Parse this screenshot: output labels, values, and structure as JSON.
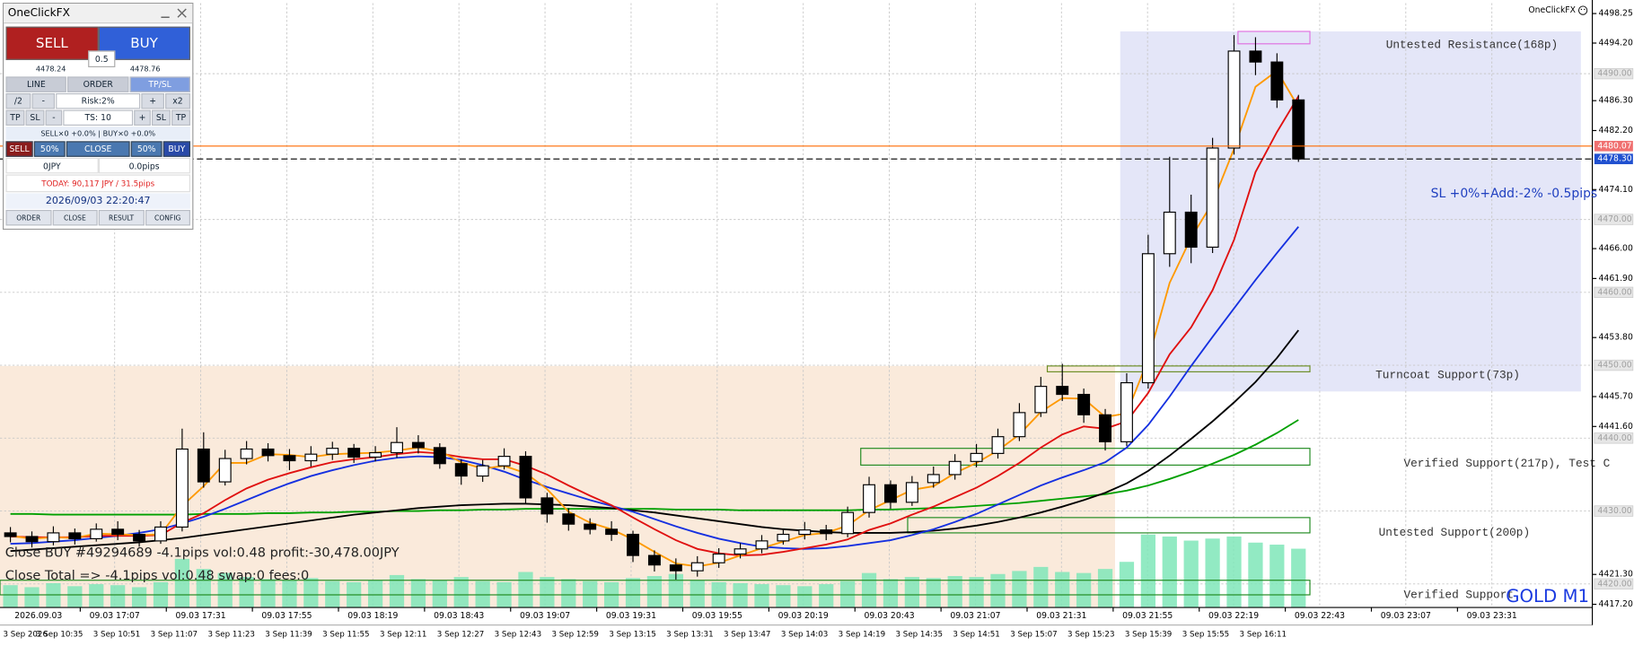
{
  "chart_data": {
    "type": "candlestick",
    "ylim": [
      4416.77,
      4499.68
    ],
    "yticks": [
      4498.25,
      {
        "value": 4494.2,
        "label": "4494.20"
      },
      {
        "value": 4486.3,
        "label": "4486.30"
      },
      {
        "value": 4482.2,
        "label": "4482.20"
      },
      {
        "value": 4474.1,
        "label": "4474.10"
      },
      {
        "value": 4466,
        "label": "4466.00"
      },
      {
        "value": 4461.9,
        "label": "4461.90"
      },
      {
        "value": 4453.8,
        "label": "4453.80"
      },
      {
        "value": 4445.7,
        "label": "4445.70"
      },
      {
        "value": 4441.6,
        "label": "4441.60"
      },
      {
        "value": 4421.3,
        "label": "4421.30"
      },
      {
        "value": 4417.2,
        "label": "4417.20"
      }
    ],
    "levels": [
      {
        "value": 4490,
        "label": "4490.00"
      },
      {
        "value": 4470,
        "label": "4470.00"
      },
      {
        "value": 4460,
        "label": "4460.00"
      },
      {
        "value": 4450,
        "label": "4450.00"
      },
      {
        "value": 4440,
        "label": "4440.00"
      },
      {
        "value": 4430,
        "label": "4430.00"
      },
      {
        "value": 4420,
        "label": "4420.00"
      }
    ],
    "grid": true,
    "price_markers": [
      {
        "value": 4480.07,
        "label": "4480.07",
        "color": "#f07070"
      },
      {
        "value": 4478.3,
        "label": "4478.30",
        "color": "#2050d0"
      }
    ],
    "xlabels": [
      "2026.09.03",
      "09.03 17:07",
      "09.03 17:31",
      "09.03 17:55",
      "09.03 18:19",
      "09.03 18:43",
      "09.03 19:07",
      "09.03 19:31",
      "09.03 19:55",
      "09.03 20:19",
      "09.03 20:43",
      "09.03 21:07",
      "09.03 21:31",
      "09.03 21:55",
      "09.03 22:19",
      "09.03 22:43",
      "09.03 23:07",
      "09.03 23:31"
    ],
    "xlabels_2": [
      "3 Sep 2026",
      "3 Sep 10:35",
      "3 Sep 10:51",
      "3 Sep 11:07",
      "3 Sep 11:23",
      "3 Sep 11:39",
      "3 Sep 11:55",
      "3 Sep 12:11",
      "3 Sep 12:27",
      "3 Sep 12:43",
      "3 Sep 12:59",
      "3 Sep 13:15",
      "3 Sep 13:31",
      "3 Sep 13:47",
      "3 Sep 14:03",
      "3 Sep 14:19",
      "3 Sep 14:35",
      "3 Sep 14:51",
      "3 Sep 15:07",
      "3 Sep 15:23",
      "3 Sep 15:39",
      "3 Sep 15:55",
      "3 Sep 16:11"
    ],
    "open": [
      4427.0,
      4426.5,
      4425.8,
      4427.0,
      4426.2,
      4427.5,
      4426.8,
      4425.9,
      4427.8,
      4438.5,
      4434.0,
      4437.2,
      4438.5,
      4437.6,
      4436.9,
      4437.8,
      4438.6,
      4437.4,
      4438.0,
      4439.4,
      4438.7,
      4436.5,
      4434.8,
      4436.2,
      4437.5,
      4431.8,
      4429.6,
      4428.2,
      4427.5,
      4426.8,
      4423.9,
      4422.6,
      4421.8,
      4422.9,
      4424.1,
      4424.8,
      4425.9,
      4426.8,
      4427.4,
      4426.9,
      4429.8,
      4433.6,
      4431.2,
      4433.9,
      4435.0,
      4436.8,
      4437.9,
      4440.2,
      4443.5,
      4447.1,
      4446.0,
      4443.2,
      4439.5,
      4447.6,
      4465.3,
      4471.0,
      4466.2,
      4479.8,
      4493.1,
      4491.6,
      4486.4
    ],
    "high": [
      4427.8,
      4427.2,
      4427.9,
      4427.6,
      4428.3,
      4428.6,
      4427.4,
      4428.6,
      4441.3,
      4440.8,
      4438.4,
      4439.6,
      4439.3,
      4438.5,
      4438.9,
      4439.5,
      4439.2,
      4438.9,
      4441.5,
      4440.4,
      4439.3,
      4437.1,
      4437.0,
      4438.6,
      4438.2,
      4432.5,
      4430.4,
      4429.0,
      4428.6,
      4427.3,
      4424.6,
      4423.5,
      4423.8,
      4424.9,
      4425.6,
      4426.7,
      4427.6,
      4428.5,
      4428.1,
      4430.6,
      4434.7,
      4434.2,
      4434.8,
      4436.1,
      4437.8,
      4439.2,
      4441.3,
      4444.8,
      4448.4,
      4450.2,
      4446.8,
      4444.0,
      4448.9,
      4467.9,
      4478.6,
      4473.4,
      4481.2,
      4495.3,
      4495.0,
      4492.8,
      4487.1
    ],
    "low": [
      4425.7,
      4425.0,
      4425.3,
      4425.4,
      4425.8,
      4426.0,
      4425.1,
      4425.5,
      4427.2,
      4433.2,
      4433.5,
      4436.4,
      4436.8,
      4435.6,
      4436.1,
      4437.0,
      4436.6,
      4436.8,
      4437.3,
      4437.9,
      4435.8,
      4433.6,
      4434.0,
      4435.7,
      4431.0,
      4428.4,
      4427.3,
      4426.8,
      4425.9,
      4423.0,
      4421.7,
      4420.6,
      4421.0,
      4422.2,
      4423.5,
      4424.2,
      4425.4,
      4426.1,
      4426.0,
      4426.4,
      4429.1,
      4430.3,
      4430.7,
      4433.2,
      4434.3,
      4436.0,
      4437.2,
      4439.6,
      4442.9,
      4445.1,
      4442.1,
      4438.3,
      4438.9,
      4446.8,
      4463.5,
      4464.0,
      4465.4,
      4478.9,
      4489.8,
      4485.3,
      4477.9
    ],
    "close": [
      4426.5,
      4425.8,
      4427.0,
      4426.2,
      4427.5,
      4426.8,
      4425.9,
      4427.8,
      4438.5,
      4434.0,
      4437.2,
      4438.5,
      4437.6,
      4436.9,
      4437.8,
      4438.6,
      4437.4,
      4438.0,
      4439.4,
      4438.7,
      4436.5,
      4434.8,
      4436.2,
      4437.5,
      4431.8,
      4429.6,
      4428.2,
      4427.5,
      4426.8,
      4423.9,
      4422.6,
      4421.8,
      4422.9,
      4424.1,
      4424.8,
      4425.9,
      4426.8,
      4427.4,
      4426.9,
      4429.8,
      4433.6,
      4431.2,
      4433.9,
      4435.0,
      4436.8,
      4437.9,
      4440.2,
      4443.5,
      4447.1,
      4446.0,
      4443.2,
      4439.5,
      4447.6,
      4465.3,
      4471.0,
      4466.2,
      4479.8,
      4493.1,
      4491.6,
      4486.4,
      4478.3
    ],
    "series": [
      {
        "color": "#00a000",
        "values": [
          4429.6,
          4429.6,
          4429.5,
          4429.5,
          4429.5,
          4429.5,
          4429.5,
          4429.5,
          4429.5,
          4429.6,
          4429.6,
          4429.6,
          4429.7,
          4429.7,
          4429.8,
          4429.8,
          4429.9,
          4429.9,
          4430.0,
          4430.0,
          4430.1,
          4430.1,
          4430.2,
          4430.2,
          4430.3,
          4430.3,
          4430.3,
          4430.3,
          4430.3,
          4430.3,
          4430.3,
          4430.2,
          4430.2,
          4430.2,
          4430.1,
          4430.1,
          4430.1,
          4430.1,
          4430.1,
          4430.1,
          4430.2,
          4430.2,
          4430.3,
          4430.4,
          4430.5,
          4430.7,
          4430.9,
          4431.1,
          4431.4,
          4431.7,
          4432.0,
          4432.3,
          4432.8,
          4433.5,
          4434.4,
          4435.4,
          4436.5,
          4437.7,
          4439.1,
          4440.7,
          4442.5
        ]
      },
      {
        "color": "#000000",
        "values": [
          4424.5,
          4424.7,
          4424.9,
          4425.1,
          4425.3,
          4425.5,
          4425.7,
          4426.0,
          4426.3,
          4426.7,
          4427.1,
          4427.5,
          4427.9,
          4428.3,
          4428.7,
          4429.1,
          4429.5,
          4429.8,
          4430.1,
          4430.4,
          4430.6,
          4430.8,
          4430.9,
          4431.0,
          4431.0,
          4430.9,
          4430.8,
          4430.6,
          4430.4,
          4430.1,
          4429.8,
          4429.4,
          4429.0,
          4428.6,
          4428.2,
          4427.8,
          4427.5,
          4427.3,
          4427.1,
          4427.0,
          4427.0,
          4427.0,
          4427.1,
          4427.3,
          4427.6,
          4428.0,
          4428.5,
          4429.1,
          4429.8,
          4430.6,
          4431.5,
          4432.5,
          4433.8,
          4435.5,
          4437.6,
          4439.9,
          4442.3,
          4444.9,
          4447.7,
          4451.0,
          4454.8
        ]
      },
      {
        "color": "#1530e0",
        "values": [
          4425.5,
          4425.6,
          4425.8,
          4426.0,
          4426.3,
          4426.6,
          4427.0,
          4427.5,
          4428.3,
          4429.2,
          4430.3,
          4431.5,
          4432.7,
          4433.8,
          4434.8,
          4435.6,
          4436.3,
          4436.9,
          4437.3,
          4437.5,
          4437.4,
          4437.0,
          4436.3,
          4435.4,
          4434.3,
          4433.3,
          4432.4,
          4431.5,
          4430.7,
          4429.9,
          4428.9,
          4427.9,
          4427.0,
          4426.2,
          4425.6,
          4425.1,
          4424.9,
          4424.8,
          4424.9,
          4425.2,
          4425.6,
          4426.0,
          4426.7,
          4427.5,
          4428.5,
          4429.6,
          4430.9,
          4432.2,
          4433.5,
          4434.6,
          4435.6,
          4436.7,
          4438.7,
          4441.8,
          4445.7,
          4449.9,
          4453.9,
          4457.8,
          4461.7,
          4465.4,
          4469.0
        ]
      },
      {
        "color": "#e01010",
        "values": [
          4426.5,
          4426.4,
          4426.4,
          4426.4,
          4426.6,
          4426.6,
          4426.6,
          4426.7,
          4428.4,
          4429.7,
          4431.5,
          4433.1,
          4434.3,
          4435.2,
          4436.0,
          4436.7,
          4437.1,
          4437.4,
          4437.8,
          4438.1,
          4437.9,
          4437.4,
          4437.1,
          4437.1,
          4436.2,
          4435.0,
          4433.5,
          4432.1,
          4430.8,
          4429.1,
          4427.5,
          4426.0,
          4424.8,
          4424.2,
          4423.9,
          4424.0,
          4424.4,
          4424.9,
          4425.4,
          4426.1,
          4427.4,
          4428.3,
          4429.5,
          4430.6,
          4431.9,
          4433.2,
          4434.8,
          4436.6,
          4438.7,
          4440.5,
          4441.6,
          4441.3,
          4442.3,
          4446.2,
          4451.5,
          4455.2,
          4460.3,
          4467.2,
          4476.5,
          4482.0,
          4486.9
        ]
      },
      {
        "color": "#ff9900",
        "values": [
          4426.6,
          4426.2,
          4426.4,
          4426.3,
          4426.9,
          4426.8,
          4426.7,
          4426.8,
          4430.7,
          4433.4,
          4436.6,
          4436.6,
          4437.8,
          4437.7,
          4437.4,
          4437.8,
          4437.9,
          4438.0,
          4438.3,
          4438.7,
          4438.2,
          4436.7,
          4435.8,
          4436.2,
          4435.2,
          4433.0,
          4429.9,
          4428.4,
          4427.5,
          4426.1,
          4424.4,
          4422.8,
          4422.4,
          4422.9,
          4423.9,
          4424.9,
          4425.8,
          4426.7,
          4427.0,
          4428.0,
          4430.1,
          4431.5,
          4432.9,
          4433.4,
          4435.2,
          4436.6,
          4438.3,
          4440.5,
          4443.6,
          4445.5,
          4445.4,
          4442.9,
          4443.4,
          4450.8,
          4461.3,
          4467.5,
          4472.3,
          4479.7,
          4488.2,
          4490.4,
          4485.4
        ]
      }
    ],
    "volumes": {
      "color": "#7fe6b8",
      "values": [
        22,
        20,
        24,
        21,
        23,
        22,
        20,
        25,
        48,
        38,
        34,
        30,
        28,
        27,
        29,
        26,
        25,
        27,
        32,
        28,
        27,
        30,
        26,
        25,
        35,
        30,
        28,
        26,
        25,
        29,
        31,
        33,
        27,
        25,
        24,
        23,
        22,
        21,
        23,
        26,
        34,
        28,
        30,
        29,
        31,
        30,
        33,
        36,
        40,
        35,
        34,
        38,
        45,
        72,
        70,
        66,
        68,
        70,
        64,
        62,
        58
      ]
    },
    "shaded_areas": [
      {
        "low": 4416.8,
        "high": 4449.9,
        "color": "#faeadb"
      },
      {
        "low": 4446.4,
        "high": 4495.8,
        "color": "#e4e6f8"
      },
      {
        "low": 4494.1,
        "high": 4495.8,
        "color": "#e070e0"
      }
    ],
    "zones": [
      {
        "label": "Untested Resistance(168p)",
        "low": 4446.4,
        "high": 4495.8,
        "color": "#e4e6f8"
      },
      {
        "label": "Turncoat Support(73p)",
        "low": 4449.1,
        "high": 4449.9,
        "color": "#6b8e23"
      },
      {
        "label": "Verified Support(217p), Test C",
        "low": 4436.3,
        "high": 4438.6,
        "color": "#1f8a1f"
      },
      {
        "label": "Untested Support(200p)",
        "low": 4427.0,
        "high": 4429.1,
        "color": "#1f8a1f"
      },
      {
        "label": "Verified Support",
        "low": 4418.5,
        "high": 4420.5,
        "color": "#1f8a1f"
      }
    ]
  },
  "overlay": {
    "brand": "OneClickFX",
    "symbol": "GOLD M1",
    "sl_note": "SL +0%+Add:-2% -0.5pips",
    "comments": [
      "Close BUY #49294689 -4.1pips vol:0.48 profit:-30,478.00JPY",
      "Close Total => -4.1pips vol:0.48 swap:0 fees:0"
    ]
  },
  "panel": {
    "title": "OneClickFX",
    "sell": "SELL",
    "buy": "BUY",
    "lot": "0.5",
    "sell_price": "4478.24",
    "buy_price": "4478.76",
    "tabs": [
      "LINE",
      "ORDER",
      "TP/SL"
    ],
    "risk_row": [
      "/2",
      "-",
      "Risk:2%",
      "+",
      "x2"
    ],
    "ts_row": [
      "TP",
      "SL",
      "-",
      "TS: 10",
      "+",
      "SL",
      "TP"
    ],
    "positions": "SELL×0 +0.0% | BUY×0 +0.0%",
    "close_row": [
      "SELL",
      "50%",
      "CLOSE",
      "50%",
      "BUY"
    ],
    "pnl": [
      "0JPY",
      "0.0pips"
    ],
    "today": "TODAY: 90,117 JPY / 31.5pips",
    "datetime": "2026/09/03  22:20:47",
    "footer": [
      "ORDER",
      "CLOSE",
      "RESULT",
      "CONFIG"
    ]
  }
}
